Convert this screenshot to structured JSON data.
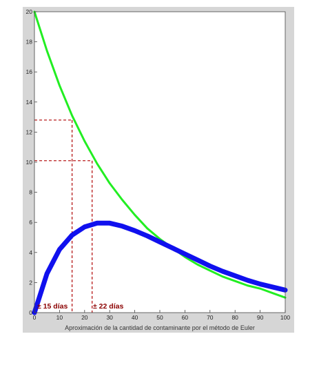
{
  "chart_data": {
    "type": "line",
    "xlim": [
      0,
      100
    ],
    "ylim": [
      0,
      20
    ],
    "x_ticks": [
      "0",
      "10",
      "20",
      "30",
      "40",
      "50",
      "60",
      "70",
      "80",
      "90",
      "100"
    ],
    "y_ticks": [
      "0",
      "2",
      "4",
      "6",
      "8",
      "10",
      "12",
      "14",
      "16",
      "18",
      "20"
    ],
    "xlabel": "Aproximación de la cantidad de contaminante por el método de Euler",
    "grid": false,
    "series": [
      {
        "color": "#22ee22",
        "x": [
          0,
          5,
          10,
          15,
          20,
          25,
          30,
          35,
          40,
          45,
          50,
          55,
          60,
          65,
          70,
          75,
          80,
          85,
          90,
          95,
          100
        ],
        "y": [
          20,
          17.4,
          15.1,
          13.1,
          11.4,
          9.9,
          8.6,
          7.5,
          6.5,
          5.6,
          4.9,
          4.3,
          3.7,
          3.2,
          2.8,
          2.4,
          2.1,
          1.8,
          1.6,
          1.3,
          1.0
        ]
      },
      {
        "color": "#1010ee",
        "x": [
          0,
          5,
          10,
          15,
          20,
          25,
          30,
          35,
          40,
          45,
          50,
          55,
          60,
          65,
          70,
          75,
          80,
          85,
          90,
          95,
          100
        ],
        "y": [
          0,
          2.6,
          4.2,
          5.15,
          5.7,
          5.95,
          5.95,
          5.75,
          5.45,
          5.1,
          4.7,
          4.3,
          3.9,
          3.5,
          3.1,
          2.75,
          2.45,
          2.15,
          1.9,
          1.7,
          1.5
        ]
      }
    ],
    "reference_lines": [
      {
        "x": 15,
        "y": 12.8
      },
      {
        "x": 23,
        "y": 10.1
      }
    ],
    "annotations": [
      "± 15 días",
      "± 22 días"
    ],
    "line_color": "#b00000"
  }
}
